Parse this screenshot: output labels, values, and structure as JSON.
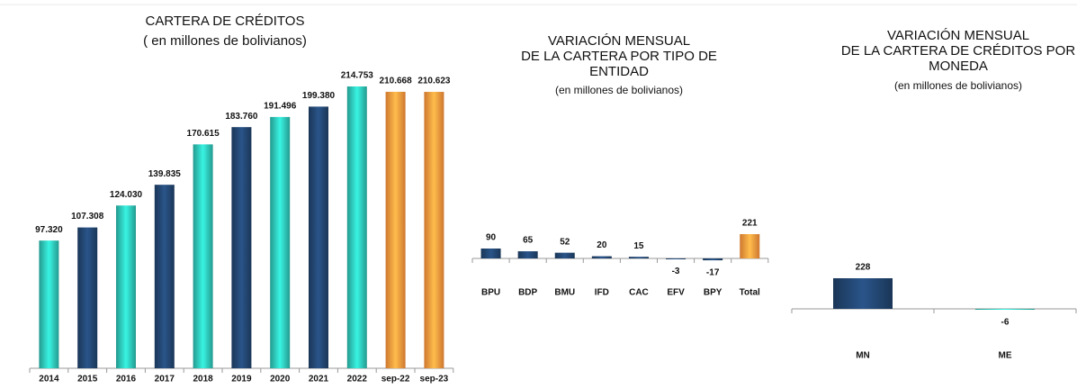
{
  "chart_data": [
    {
      "type": "bar",
      "title": "CARTERA DE CRÉDITOS",
      "subtitle": "( en millones de bolivianos)",
      "categories": [
        "2014",
        "2015",
        "2016",
        "2017",
        "2018",
        "2019",
        "2020",
        "2021",
        "2022",
        "sep-22",
        "sep-23"
      ],
      "values": [
        97320,
        107308,
        124030,
        139835,
        170615,
        183760,
        191496,
        199380,
        214753,
        210668,
        210623
      ],
      "value_labels": [
        "97.320",
        "107.308",
        "124.030",
        "139.835",
        "170.615",
        "183.760",
        "191.496",
        "199.380",
        "214.753",
        "210.668",
        "210.623"
      ],
      "colors": [
        "#2ab5a8",
        "#1f3f66",
        "#2ab5a8",
        "#1f3f66",
        "#2ab5a8",
        "#1f3f66",
        "#2ab5a8",
        "#1f3f66",
        "#2ab5a8",
        "#f28c38",
        "#f28c38"
      ]
    },
    {
      "type": "bar",
      "title": [
        "VARIACIÓN MENSUAL",
        "DE LA CARTERA POR TIPO DE",
        "ENTIDAD"
      ],
      "subtitle": "(en millones de bolivianos)",
      "categories": [
        "BPU",
        "BDP",
        "BMU",
        "IFD",
        "CAC",
        "EFV",
        "BPY",
        "Total"
      ],
      "values": [
        90,
        65,
        52,
        20,
        15,
        -3,
        -17,
        221
      ],
      "colors": [
        "#1f3f66",
        "#1f3f66",
        "#1f3f66",
        "#1f3f66",
        "#1f3f66",
        "#1f3f66",
        "#1f3f66",
        "#f28c38"
      ]
    },
    {
      "type": "bar",
      "title": [
        "VARIACIÓN MENSUAL",
        "DE LA CARTERA DE CRÉDITOS POR",
        "MONEDA"
      ],
      "subtitle": "(en millones de bolivianos)",
      "categories": [
        "MN",
        "ME"
      ],
      "values": [
        228,
        -6
      ],
      "colors": [
        "#1f3f66",
        "#2ab5a8"
      ]
    }
  ]
}
